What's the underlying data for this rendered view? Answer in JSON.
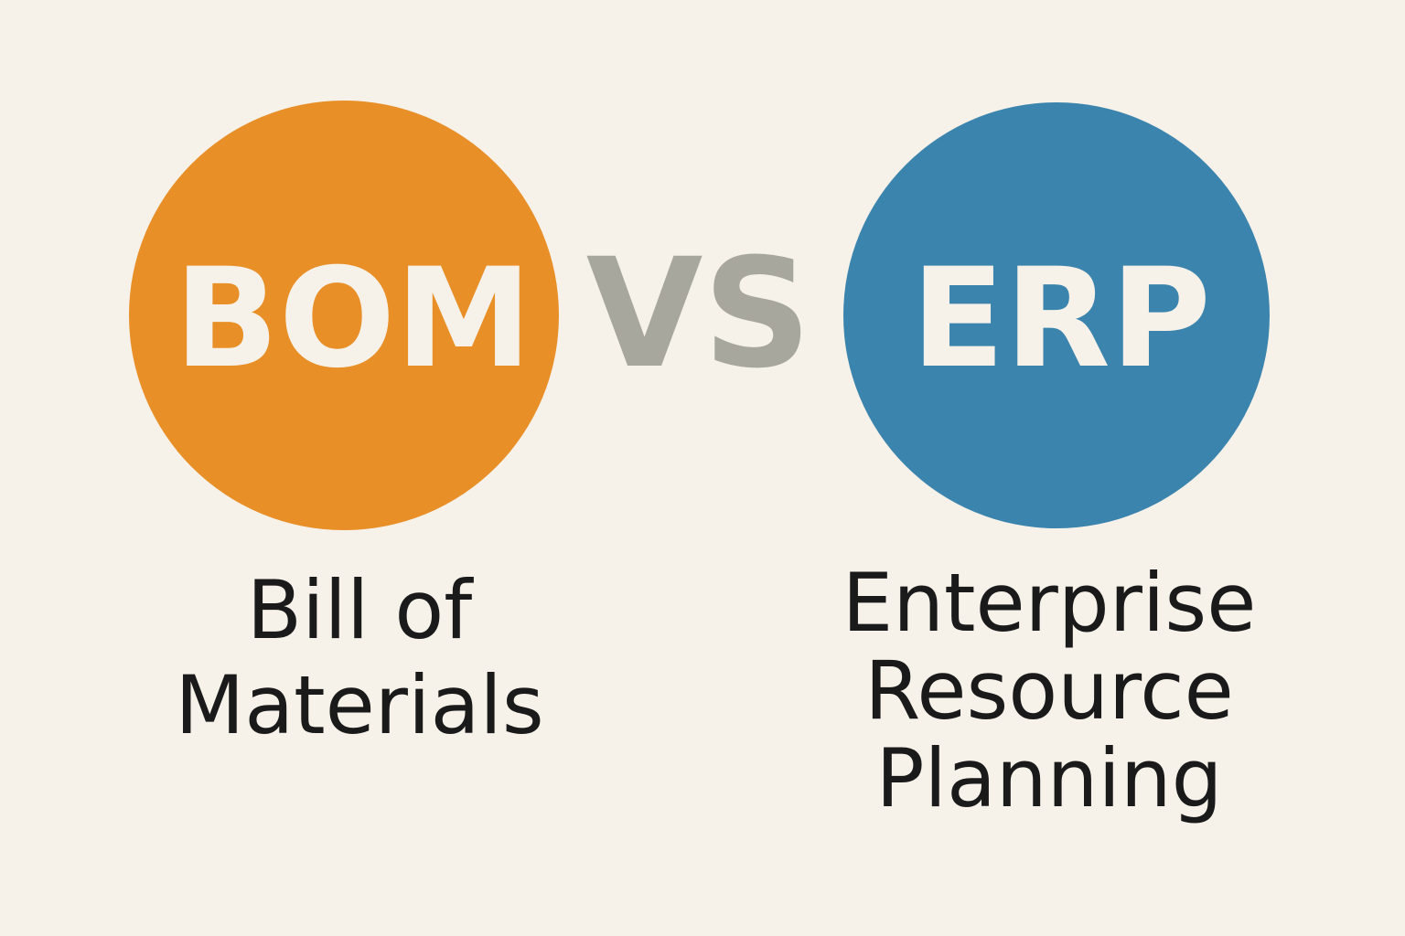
{
  "left": {
    "label": "BOM",
    "caption": [
      "Bill of",
      "Materials"
    ]
  },
  "separator": "VS",
  "right": {
    "label": "ERP",
    "caption": [
      "Enterprise",
      "Resource",
      "Planning"
    ]
  }
}
